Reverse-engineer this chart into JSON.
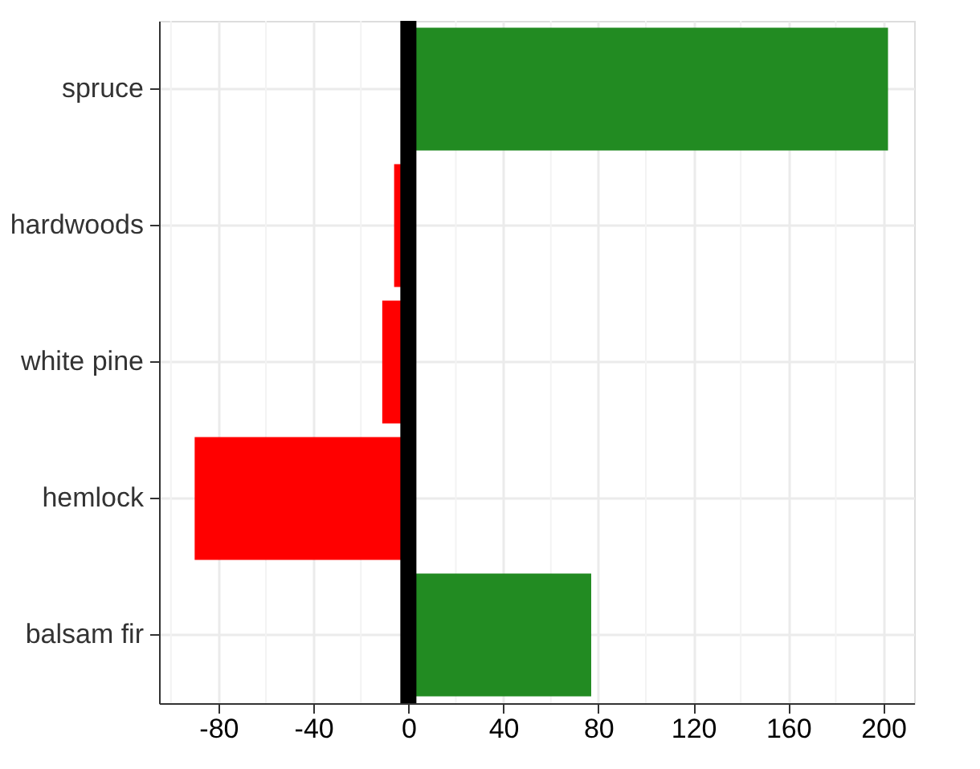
{
  "chart_data": {
    "type": "bar",
    "orientation": "horizontal",
    "categories": [
      "spruce",
      "hardwoods",
      "white pine",
      "hemlock",
      "balsam fir"
    ],
    "values": [
      202,
      -6,
      -11,
      -90,
      77
    ],
    "colors": [
      "#228b22",
      "#ff0000",
      "#ff0000",
      "#ff0000",
      "#228b22"
    ],
    "xlim": [
      -105,
      213
    ],
    "xticks": [
      -80,
      -40,
      0,
      40,
      80,
      120,
      160,
      200
    ],
    "grid": true,
    "ref_lines": [
      {
        "axis": "x",
        "value": 0,
        "color": "#000000"
      }
    ]
  }
}
